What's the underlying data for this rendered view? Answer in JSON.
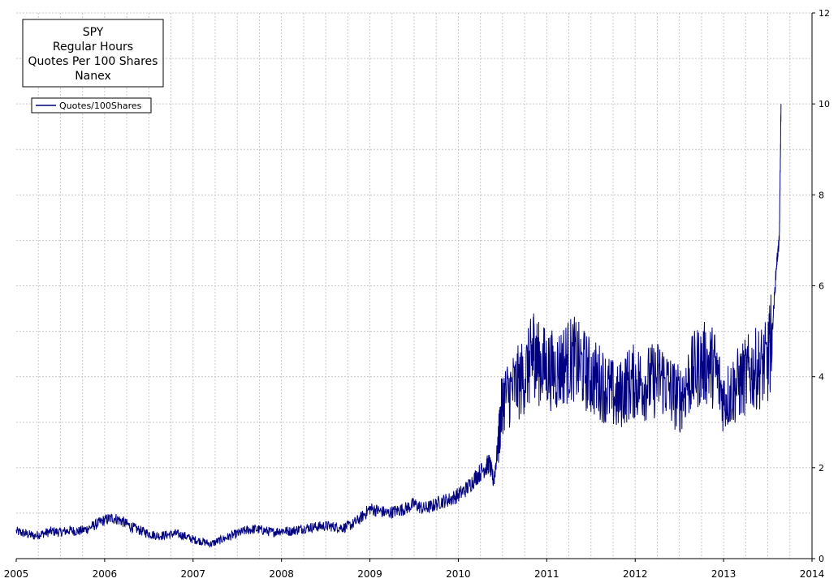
{
  "chart_data": {
    "type": "line",
    "title_lines": [
      "SPY",
      "Regular Hours",
      "Quotes Per 100 Shares",
      "Nanex"
    ],
    "legend": {
      "label": "Quotes/100Shares",
      "placement": "top-left"
    },
    "x_axis": {
      "min": 2005,
      "max": 2014,
      "ticks": [
        2005,
        2006,
        2007,
        2008,
        2009,
        2010,
        2011,
        2012,
        2013,
        2014
      ],
      "tick_labels": [
        "2005",
        "2006",
        "2007",
        "2008",
        "2009",
        "2010",
        "2011",
        "2012",
        "2013",
        "2014"
      ],
      "minor_divisions": 4
    },
    "y_axis": {
      "position": "right",
      "min": 0,
      "max": 12,
      "ticks": [
        0,
        2,
        4,
        6,
        8,
        10,
        12
      ],
      "tick_labels": [
        "0",
        "2",
        "4",
        "6",
        "8",
        "10",
        "12"
      ],
      "minor_step": 1
    },
    "grid": true,
    "colors": {
      "series": "#000080",
      "grid": "#c8c8c8",
      "axis": "#000000"
    },
    "series": [
      {
        "name": "Quotes/100Shares",
        "points": [
          [
            2005.0,
            0.6
          ],
          [
            2005.1,
            0.55
          ],
          [
            2005.2,
            0.5
          ],
          [
            2005.3,
            0.55
          ],
          [
            2005.4,
            0.6
          ],
          [
            2005.5,
            0.58
          ],
          [
            2005.6,
            0.62
          ],
          [
            2005.7,
            0.6
          ],
          [
            2005.8,
            0.65
          ],
          [
            2005.9,
            0.75
          ],
          [
            2006.0,
            0.85
          ],
          [
            2006.1,
            0.9
          ],
          [
            2006.2,
            0.82
          ],
          [
            2006.3,
            0.7
          ],
          [
            2006.4,
            0.62
          ],
          [
            2006.5,
            0.55
          ],
          [
            2006.6,
            0.5
          ],
          [
            2006.7,
            0.52
          ],
          [
            2006.8,
            0.55
          ],
          [
            2006.9,
            0.5
          ],
          [
            2007.0,
            0.42
          ],
          [
            2007.1,
            0.38
          ],
          [
            2007.2,
            0.32
          ],
          [
            2007.3,
            0.4
          ],
          [
            2007.4,
            0.48
          ],
          [
            2007.5,
            0.55
          ],
          [
            2007.6,
            0.62
          ],
          [
            2007.7,
            0.65
          ],
          [
            2007.8,
            0.62
          ],
          [
            2007.9,
            0.58
          ],
          [
            2008.0,
            0.62
          ],
          [
            2008.1,
            0.6
          ],
          [
            2008.2,
            0.65
          ],
          [
            2008.3,
            0.68
          ],
          [
            2008.4,
            0.7
          ],
          [
            2008.5,
            0.72
          ],
          [
            2008.6,
            0.7
          ],
          [
            2008.7,
            0.68
          ],
          [
            2008.8,
            0.75
          ],
          [
            2008.9,
            0.9
          ],
          [
            2009.0,
            1.1
          ],
          [
            2009.1,
            1.05
          ],
          [
            2009.2,
            1.0
          ],
          [
            2009.3,
            1.05
          ],
          [
            2009.4,
            1.1
          ],
          [
            2009.5,
            1.2
          ],
          [
            2009.6,
            1.1
          ],
          [
            2009.7,
            1.15
          ],
          [
            2009.8,
            1.25
          ],
          [
            2009.9,
            1.3
          ],
          [
            2010.0,
            1.4
          ],
          [
            2010.1,
            1.55
          ],
          [
            2010.2,
            1.8
          ],
          [
            2010.3,
            2.0
          ],
          [
            2010.35,
            2.1
          ],
          [
            2010.4,
            1.7
          ],
          [
            2010.45,
            2.5
          ],
          [
            2010.5,
            3.5
          ],
          [
            2010.6,
            3.7
          ],
          [
            2010.7,
            3.9
          ],
          [
            2010.8,
            4.2
          ],
          [
            2010.85,
            4.6
          ],
          [
            2010.9,
            4.3
          ],
          [
            2011.0,
            4.2
          ],
          [
            2011.1,
            4.1
          ],
          [
            2011.2,
            4.3
          ],
          [
            2011.3,
            4.4
          ],
          [
            2011.4,
            4.2
          ],
          [
            2011.5,
            4.0
          ],
          [
            2011.6,
            3.9
          ],
          [
            2011.7,
            3.7
          ],
          [
            2011.8,
            3.5
          ],
          [
            2011.9,
            3.8
          ],
          [
            2012.0,
            3.9
          ],
          [
            2012.1,
            3.85
          ],
          [
            2012.2,
            3.9
          ],
          [
            2012.3,
            4.0
          ],
          [
            2012.4,
            3.7
          ],
          [
            2012.5,
            3.5
          ],
          [
            2012.6,
            3.9
          ],
          [
            2012.7,
            4.2
          ],
          [
            2012.8,
            4.3
          ],
          [
            2012.9,
            4.2
          ],
          [
            2013.0,
            3.5
          ],
          [
            2013.1,
            3.7
          ],
          [
            2013.2,
            3.9
          ],
          [
            2013.3,
            4.1
          ],
          [
            2013.4,
            4.2
          ],
          [
            2013.5,
            4.3
          ],
          [
            2013.55,
            5.0
          ],
          [
            2013.6,
            6.5
          ],
          [
            2013.63,
            7.0
          ],
          [
            2013.65,
            10.0
          ]
        ]
      }
    ]
  }
}
